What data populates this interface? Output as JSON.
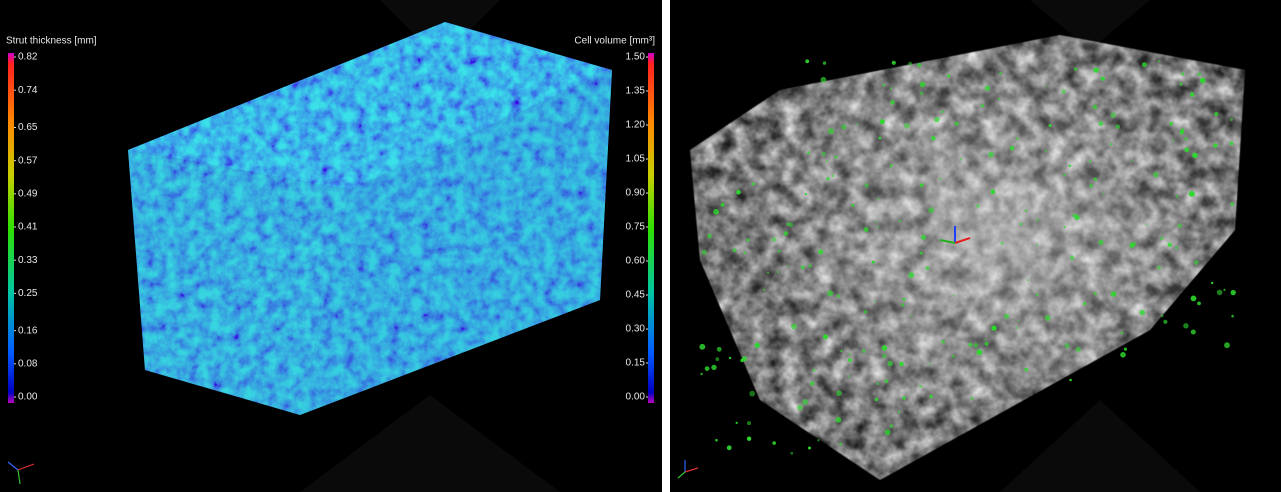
{
  "left_panel": {
    "legend": {
      "title": "Strut thickness [mm]",
      "ticks": [
        0.82,
        0.74,
        0.65,
        0.57,
        0.49,
        0.41,
        0.33,
        0.25,
        0.16,
        0.08,
        {
          "value": 0,
          "label": "0.00"
        }
      ]
    }
  },
  "right_panel": {
    "legend": {
      "title": "Cell volume [mm³]",
      "ticks": [
        {
          "value": 1.5,
          "label": "1.50"
        },
        1.35,
        {
          "value": 1.2,
          "label": "1.20"
        },
        1.05,
        {
          "value": 0.9,
          "label": "0.90"
        },
        0.75,
        {
          "value": 0.6,
          "label": "0.60"
        },
        0.45,
        {
          "value": 0.3,
          "label": "0.30"
        },
        0.15,
        {
          "value": 0,
          "label": "0.00"
        }
      ]
    }
  }
}
